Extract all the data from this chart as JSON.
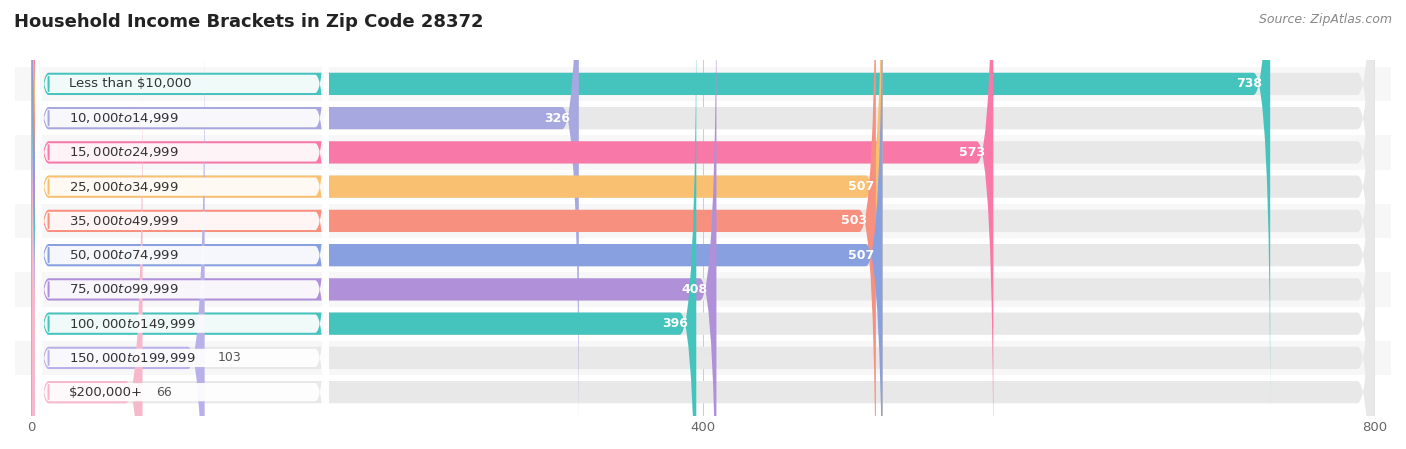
{
  "title": "Household Income Brackets in Zip Code 28372",
  "source": "Source: ZipAtlas.com",
  "categories": [
    "Less than $10,000",
    "$10,000 to $14,999",
    "$15,000 to $24,999",
    "$25,000 to $34,999",
    "$35,000 to $49,999",
    "$50,000 to $74,999",
    "$75,000 to $99,999",
    "$100,000 to $149,999",
    "$150,000 to $199,999",
    "$200,000+"
  ],
  "values": [
    738,
    326,
    573,
    507,
    503,
    507,
    408,
    396,
    103,
    66
  ],
  "bar_colors": [
    "#45C4BE",
    "#A8A8E0",
    "#F878A8",
    "#F8C070",
    "#F89080",
    "#88A0E0",
    "#B090D8",
    "#45C4BE",
    "#B8B0E8",
    "#F8B8CC"
  ],
  "bg_bar_color": "#E8E8E8",
  "row_bg_even": "#F7F7F7",
  "row_bg_odd": "#FFFFFF",
  "xlim_max": 800,
  "xticks": [
    0,
    400,
    800
  ],
  "title_fontsize": 13,
  "label_fontsize": 9.5,
  "value_fontsize": 9,
  "source_fontsize": 9,
  "background_color": "#FFFFFF",
  "bar_height": 0.65,
  "value_inside_threshold": 250
}
